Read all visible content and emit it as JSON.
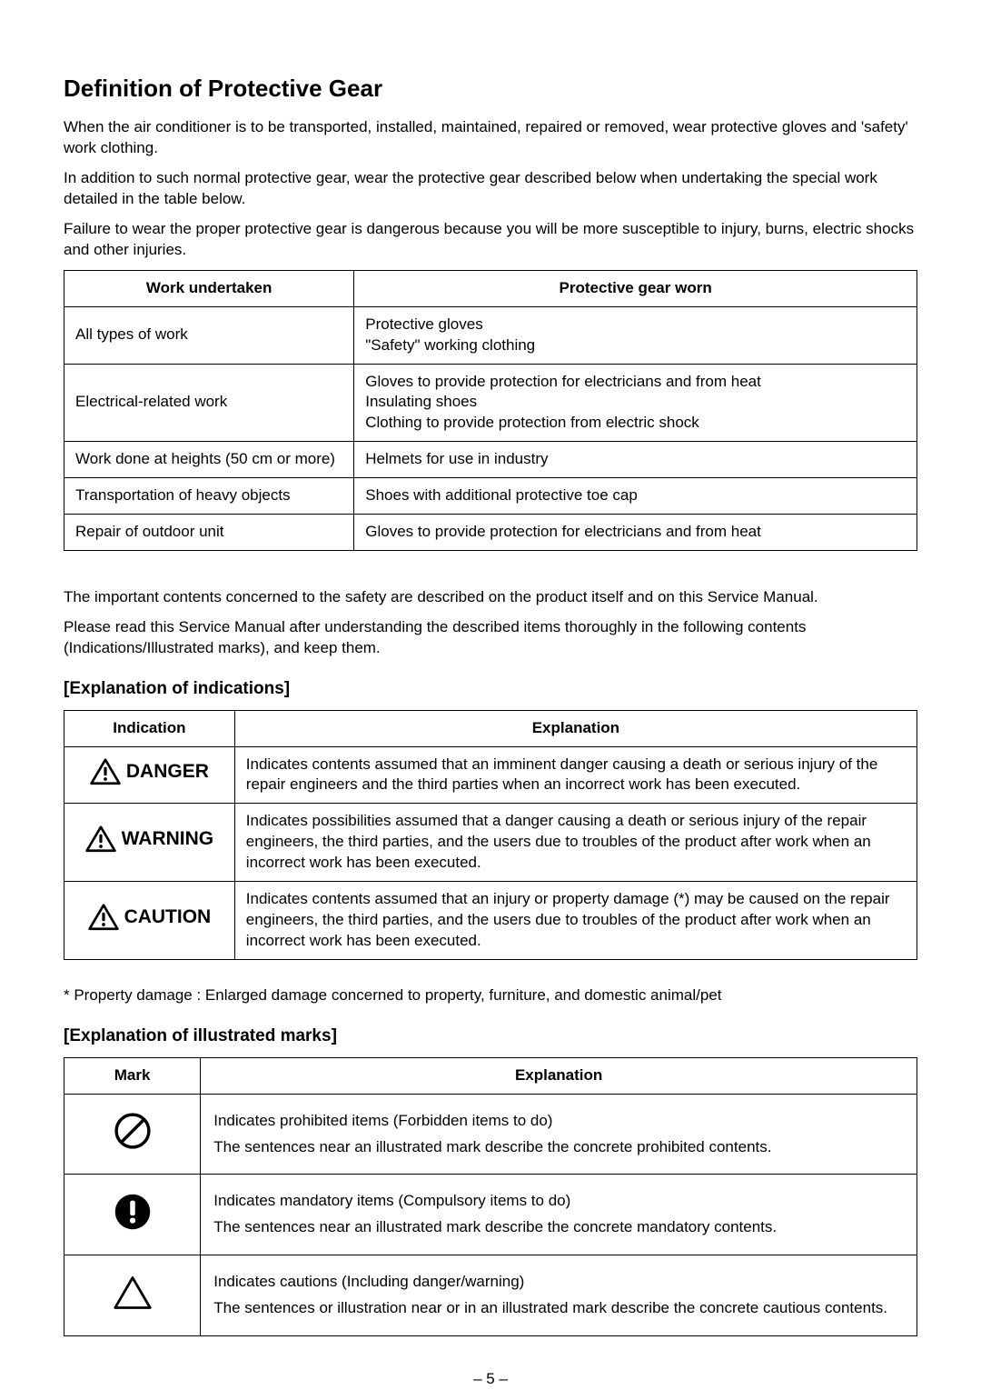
{
  "title": "Definition of Protective Gear",
  "intro": {
    "p1": "When the air conditioner is to be transported, installed, maintained, repaired or removed, wear protective gloves and 'safety' work clothing.",
    "p2": "In addition to such normal protective gear, wear the protective gear described below when undertaking the special work detailed in the table below.",
    "p3": "Failure to wear the proper protective gear is dangerous because you will be more susceptible to injury, burns, electric shocks and other injuries."
  },
  "gear_table": {
    "headers": {
      "c1": "Work undertaken",
      "c2": "Protective gear worn"
    },
    "rows": [
      {
        "c1": "All types of work",
        "c2": "Protective gloves\n\"Safety\" working clothing"
      },
      {
        "c1": "Electrical-related work",
        "c2": "Gloves to provide protection for electricians and from heat\nInsulating shoes\nClothing to provide protection from electric shock"
      },
      {
        "c1": "Work done at heights (50 cm or more)",
        "c2": "Helmets for use in industry"
      },
      {
        "c1": "Transportation of heavy objects",
        "c2": "Shoes with additional protective toe cap"
      },
      {
        "c1": "Repair of outdoor unit",
        "c2": "Gloves to provide protection for electricians and from heat"
      }
    ]
  },
  "after_gear": {
    "p1": "The important contents concerned to the safety are described on the product itself and on this Service Manual.",
    "p2": "Please read this Service Manual after understanding the described items thoroughly in the following contents (Indications/Illustrated marks), and keep them."
  },
  "indications_heading": "[Explanation of indications]",
  "indications_table": {
    "headers": {
      "c1": "Indication",
      "c2": "Explanation"
    },
    "rows": [
      {
        "label": "DANGER",
        "explanation": "Indicates contents assumed that an imminent danger causing a death or serious injury of the repair engineers and the third parties when an incorrect work has been executed."
      },
      {
        "label": "WARNING",
        "explanation": "Indicates possibilities assumed that a danger causing a death or serious injury of the repair engineers, the third parties, and the users due to troubles of the product after work when an incorrect work has been executed."
      },
      {
        "label": "CAUTION",
        "explanation": "Indicates contents assumed that an injury or property damage (*) may be caused  on the repair engineers, the third parties, and the users due to troubles of the product after work when an incorrect work has been executed."
      }
    ]
  },
  "footnote": "* Property damage : Enlarged damage concerned to property, furniture, and domestic animal/pet",
  "marks_heading": "[Explanation of illustrated marks]",
  "marks_table": {
    "headers": {
      "c1": "Mark",
      "c2": "Explanation"
    },
    "rows": [
      {
        "mark": "prohibit",
        "l1": "Indicates prohibited items (Forbidden items to do)",
        "l2": "The sentences near an illustrated mark describe the concrete prohibited contents."
      },
      {
        "mark": "mandatory",
        "l1": "Indicates mandatory items (Compulsory items to do)",
        "l2": "The sentences near an illustrated mark describe the concrete mandatory contents."
      },
      {
        "mark": "caution",
        "l1": "Indicates cautions (Including danger/warning)",
        "l2": "The sentences or illustration near or in an illustrated mark describe the concrete cautious contents."
      }
    ]
  },
  "page_number": "– 5 –",
  "colors": {
    "text": "#000000",
    "background": "#ffffff",
    "border": "#000000"
  }
}
